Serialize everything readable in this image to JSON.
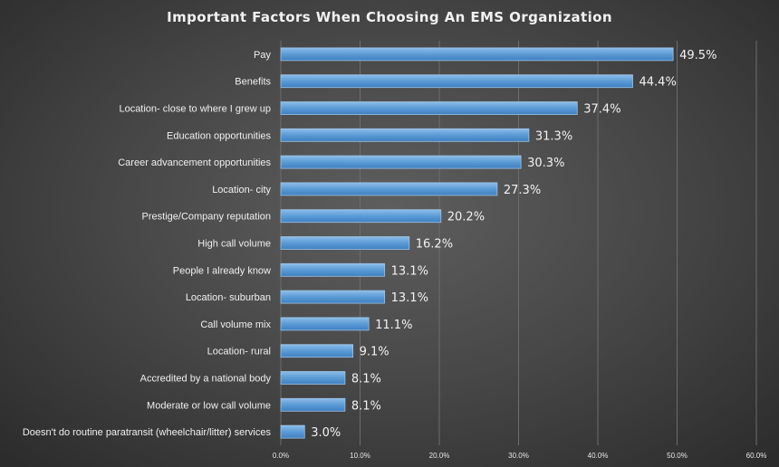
{
  "chart_data": {
    "type": "bar",
    "orientation": "horizontal",
    "title": "Important Factors When Choosing An EMS Organization",
    "categories": [
      "Pay",
      "Benefits",
      "Location- close to where I grew up",
      "Education opportunities",
      "Career advancement opportunities",
      "Location- city",
      "Prestige/Company reputation",
      "High call volume",
      "People I already know",
      "Location- suburban",
      "Call volume mix",
      "Location- rural",
      "Accredited by a national body",
      "Moderate or low call volume",
      "Doesn't do routine paratransit (wheelchair/litter) services"
    ],
    "values": [
      49.5,
      44.4,
      37.4,
      31.3,
      30.3,
      27.3,
      20.2,
      16.2,
      13.1,
      13.1,
      11.1,
      9.1,
      8.1,
      8.1,
      3.0
    ],
    "value_labels": [
      "49.5%",
      "44.4%",
      "37.4%",
      "31.3%",
      "30.3%",
      "27.3%",
      "20.2%",
      "16.2%",
      "13.1%",
      "13.1%",
      "11.1%",
      "9.1%",
      "8.1%",
      "8.1%",
      "3.0%"
    ],
    "xlim": [
      0,
      60
    ],
    "x_ticks": [
      0,
      10,
      20,
      30,
      40,
      50,
      60
    ],
    "x_tick_labels": [
      "0.0%",
      "10.0%",
      "20.0%",
      "30.0%",
      "40.0%",
      "50.0%",
      "60.0%"
    ],
    "xlabel": "",
    "ylabel": "",
    "grid": "vertical",
    "legend": "none",
    "colors": {
      "bar": "#5b9bd5",
      "bar_edge": "#9dc3e6",
      "gridline": "#6c6c6c",
      "text": "#f2f2f2"
    }
  }
}
